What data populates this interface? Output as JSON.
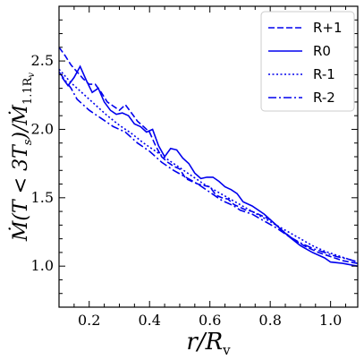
{
  "chart_data": {
    "type": "line",
    "xlabel": "r/R_v",
    "ylabel": "Ṁ(T < 3T_s)/Ṁ_1.1R_v",
    "xlim": [
      0.1,
      1.09
    ],
    "ylim": [
      0.7,
      2.9
    ],
    "xticks": [
      0.2,
      0.4,
      0.6,
      0.8,
      1.0
    ],
    "xtick_labels": [
      "0.2",
      "0.4",
      "0.6",
      "0.8",
      "1.0"
    ],
    "yticks": [
      1.0,
      1.5,
      2.0,
      2.5
    ],
    "ytick_labels": [
      "1.0",
      "1.5",
      "2.0",
      "2.5"
    ],
    "grid": false,
    "legend_position": "top-right",
    "color": "#0000ee",
    "series": [
      {
        "name": "R+1",
        "dash": "dashed",
        "x": [
          0.1,
          0.12,
          0.14,
          0.16,
          0.18,
          0.2,
          0.22,
          0.24,
          0.26,
          0.28,
          0.3,
          0.32,
          0.34,
          0.36,
          0.38,
          0.4,
          0.42,
          0.44,
          0.46,
          0.48,
          0.5,
          0.52,
          0.54,
          0.56,
          0.58,
          0.6,
          0.62,
          0.64,
          0.66,
          0.68,
          0.7,
          0.72,
          0.74,
          0.76,
          0.78,
          0.8,
          0.84,
          0.88,
          0.92,
          0.96,
          1.0,
          1.04,
          1.09
        ],
        "y": [
          2.6,
          2.54,
          2.47,
          2.42,
          2.37,
          2.33,
          2.33,
          2.27,
          2.2,
          2.17,
          2.14,
          2.18,
          2.12,
          2.06,
          2.02,
          1.98,
          1.88,
          1.8,
          1.76,
          1.73,
          1.71,
          1.64,
          1.62,
          1.6,
          1.59,
          1.58,
          1.52,
          1.5,
          1.49,
          1.45,
          1.43,
          1.41,
          1.4,
          1.38,
          1.36,
          1.34,
          1.26,
          1.19,
          1.14,
          1.1,
          1.07,
          1.04,
          1.02
        ]
      },
      {
        "name": "R0",
        "dash": "solid",
        "x": [
          0.11,
          0.13,
          0.15,
          0.17,
          0.19,
          0.21,
          0.23,
          0.25,
          0.27,
          0.29,
          0.31,
          0.33,
          0.35,
          0.37,
          0.39,
          0.41,
          0.43,
          0.45,
          0.47,
          0.49,
          0.51,
          0.53,
          0.55,
          0.57,
          0.59,
          0.61,
          0.63,
          0.65,
          0.67,
          0.69,
          0.71,
          0.74,
          0.78,
          0.82,
          0.86,
          0.9,
          0.94,
          0.98,
          1.0,
          1.04,
          1.09
        ],
        "y": [
          2.38,
          2.32,
          2.38,
          2.46,
          2.36,
          2.27,
          2.3,
          2.2,
          2.14,
          2.11,
          2.12,
          2.1,
          2.04,
          2.02,
          1.98,
          2.0,
          1.88,
          1.8,
          1.86,
          1.85,
          1.79,
          1.75,
          1.68,
          1.64,
          1.65,
          1.65,
          1.62,
          1.58,
          1.56,
          1.53,
          1.47,
          1.44,
          1.38,
          1.3,
          1.22,
          1.15,
          1.1,
          1.06,
          1.03,
          1.02,
          1.0
        ]
      },
      {
        "name": "R-1",
        "dash": "dotted",
        "x": [
          0.1,
          0.14,
          0.18,
          0.22,
          0.26,
          0.3,
          0.34,
          0.38,
          0.42,
          0.46,
          0.5,
          0.54,
          0.58,
          0.62,
          0.66,
          0.7,
          0.74,
          0.78,
          0.82,
          0.86,
          0.9,
          0.94,
          0.98,
          1.02,
          1.06,
          1.09
        ],
        "y": [
          2.44,
          2.34,
          2.26,
          2.18,
          2.1,
          2.03,
          1.97,
          1.9,
          1.84,
          1.78,
          1.72,
          1.66,
          1.6,
          1.55,
          1.5,
          1.45,
          1.4,
          1.35,
          1.3,
          1.25,
          1.2,
          1.15,
          1.11,
          1.08,
          1.05,
          1.03
        ]
      },
      {
        "name": "R-2",
        "dash": "dashdot",
        "x": [
          0.1,
          0.12,
          0.14,
          0.16,
          0.18,
          0.2,
          0.24,
          0.28,
          0.32,
          0.36,
          0.4,
          0.44,
          0.48,
          0.52,
          0.56,
          0.6,
          0.64,
          0.66,
          0.68,
          0.7,
          0.74,
          0.78,
          0.82,
          0.86,
          0.9,
          0.94,
          0.98,
          1.02,
          1.06,
          1.09
        ],
        "y": [
          2.42,
          2.36,
          2.3,
          2.22,
          2.18,
          2.14,
          2.08,
          2.02,
          1.98,
          1.9,
          1.84,
          1.76,
          1.7,
          1.65,
          1.6,
          1.54,
          1.48,
          1.46,
          1.44,
          1.41,
          1.38,
          1.33,
          1.28,
          1.22,
          1.17,
          1.13,
          1.1,
          1.07,
          1.05,
          1.03
        ]
      }
    ]
  }
}
